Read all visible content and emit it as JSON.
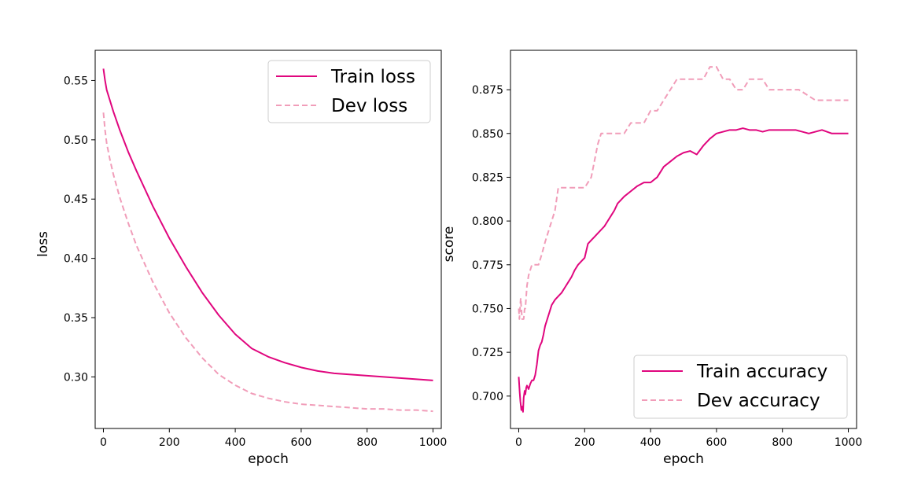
{
  "chart_data": [
    {
      "type": "line",
      "title": "",
      "xlabel": "epoch",
      "ylabel": "loss",
      "xlim": [
        -25,
        1025
      ],
      "ylim": [
        0.2565,
        0.5755
      ],
      "xticks": [
        0,
        200,
        400,
        600,
        800,
        1000
      ],
      "xtick_labels": [
        "0",
        "200",
        "400",
        "600",
        "800",
        "1000"
      ],
      "yticks": [
        0.3,
        0.35,
        0.4,
        0.45,
        0.5,
        0.55
      ],
      "ytick_labels": [
        "0.30",
        "0.35",
        "0.40",
        "0.45",
        "0.50",
        "0.55"
      ],
      "legend_position": "top-right",
      "series": [
        {
          "name": "Train loss",
          "color": "#e0067e",
          "style": "solid",
          "x": [
            0,
            5,
            10,
            20,
            30,
            50,
            75,
            100,
            150,
            200,
            250,
            300,
            350,
            400,
            450,
            500,
            550,
            600,
            650,
            700,
            750,
            800,
            850,
            900,
            950,
            1000
          ],
          "y": [
            0.56,
            0.55,
            0.542,
            0.533,
            0.524,
            0.508,
            0.49,
            0.474,
            0.444,
            0.417,
            0.393,
            0.371,
            0.352,
            0.336,
            0.324,
            0.317,
            0.312,
            0.308,
            0.305,
            0.303,
            0.302,
            0.301,
            0.3,
            0.299,
            0.298,
            0.297
          ]
        },
        {
          "name": "Dev loss",
          "color": "#f19db9",
          "style": "dashed",
          "x": [
            0,
            5,
            10,
            20,
            30,
            50,
            75,
            100,
            150,
            200,
            250,
            300,
            350,
            400,
            450,
            500,
            550,
            600,
            650,
            700,
            750,
            800,
            850,
            900,
            950,
            1000
          ],
          "y": [
            0.523,
            0.508,
            0.497,
            0.483,
            0.471,
            0.451,
            0.43,
            0.411,
            0.38,
            0.354,
            0.333,
            0.316,
            0.302,
            0.293,
            0.286,
            0.282,
            0.279,
            0.277,
            0.276,
            0.275,
            0.274,
            0.273,
            0.273,
            0.272,
            0.272,
            0.271
          ]
        }
      ]
    },
    {
      "type": "line",
      "title": "",
      "xlabel": "epoch",
      "ylabel": "score",
      "xlim": [
        -25,
        1025
      ],
      "ylim": [
        0.6815,
        0.8975
      ],
      "xticks": [
        0,
        200,
        400,
        600,
        800,
        1000
      ],
      "xtick_labels": [
        "0",
        "200",
        "400",
        "600",
        "800",
        "1000"
      ],
      "yticks": [
        0.7,
        0.725,
        0.75,
        0.775,
        0.8,
        0.825,
        0.85,
        0.875
      ],
      "ytick_labels": [
        "0.700",
        "0.725",
        "0.750",
        "0.775",
        "0.800",
        "0.825",
        "0.850",
        "0.875"
      ],
      "legend_position": "bottom-right",
      "series": [
        {
          "name": "Train accuracy",
          "color": "#e0067e",
          "style": "solid",
          "x": [
            0,
            3,
            5,
            8,
            10,
            13,
            15,
            18,
            20,
            23,
            25,
            30,
            35,
            40,
            45,
            50,
            55,
            60,
            65,
            70,
            75,
            80,
            85,
            90,
            95,
            100,
            110,
            120,
            130,
            140,
            150,
            160,
            170,
            180,
            190,
            200,
            210,
            220,
            230,
            240,
            250,
            260,
            270,
            280,
            290,
            300,
            320,
            340,
            360,
            380,
            400,
            420,
            440,
            460,
            480,
            500,
            520,
            540,
            560,
            580,
            600,
            620,
            640,
            660,
            680,
            700,
            720,
            740,
            760,
            780,
            800,
            840,
            880,
            900,
            920,
            950,
            1000
          ],
          "y": [
            0.711,
            0.702,
            0.697,
            0.692,
            0.694,
            0.691,
            0.699,
            0.703,
            0.701,
            0.705,
            0.706,
            0.704,
            0.707,
            0.709,
            0.709,
            0.712,
            0.718,
            0.726,
            0.729,
            0.731,
            0.735,
            0.74,
            0.743,
            0.746,
            0.749,
            0.752,
            0.755,
            0.757,
            0.759,
            0.762,
            0.765,
            0.768,
            0.772,
            0.775,
            0.777,
            0.779,
            0.787,
            0.789,
            0.791,
            0.793,
            0.795,
            0.797,
            0.8,
            0.803,
            0.806,
            0.81,
            0.814,
            0.817,
            0.82,
            0.822,
            0.822,
            0.825,
            0.831,
            0.834,
            0.837,
            0.839,
            0.84,
            0.838,
            0.843,
            0.847,
            0.85,
            0.851,
            0.852,
            0.852,
            0.853,
            0.852,
            0.852,
            0.851,
            0.852,
            0.852,
            0.852,
            0.852,
            0.85,
            0.851,
            0.852,
            0.85,
            0.85
          ]
        },
        {
          "name": "Dev accuracy",
          "color": "#f19db9",
          "style": "dashed",
          "x": [
            0,
            2,
            4,
            6,
            8,
            10,
            12,
            15,
            18,
            20,
            25,
            30,
            40,
            50,
            60,
            70,
            80,
            90,
            100,
            110,
            120,
            140,
            160,
            180,
            200,
            220,
            240,
            250,
            260,
            280,
            300,
            320,
            340,
            360,
            380,
            400,
            420,
            440,
            460,
            480,
            500,
            520,
            540,
            560,
            580,
            600,
            620,
            640,
            660,
            680,
            700,
            720,
            740,
            760,
            780,
            800,
            850,
            900,
            950,
            1000
          ],
          "y": [
            0.75,
            0.744,
            0.75,
            0.756,
            0.75,
            0.744,
            0.744,
            0.744,
            0.75,
            0.75,
            0.763,
            0.769,
            0.775,
            0.775,
            0.775,
            0.781,
            0.788,
            0.794,
            0.8,
            0.806,
            0.819,
            0.819,
            0.819,
            0.819,
            0.819,
            0.825,
            0.844,
            0.85,
            0.85,
            0.85,
            0.85,
            0.85,
            0.856,
            0.856,
            0.856,
            0.863,
            0.863,
            0.869,
            0.875,
            0.881,
            0.881,
            0.881,
            0.881,
            0.881,
            0.888,
            0.888,
            0.881,
            0.881,
            0.875,
            0.875,
            0.881,
            0.881,
            0.881,
            0.875,
            0.875,
            0.875,
            0.875,
            0.869,
            0.869,
            0.869
          ]
        }
      ]
    }
  ],
  "colors": {
    "train": "#e0067e",
    "dev": "#f19db9",
    "axis": "#000000"
  }
}
